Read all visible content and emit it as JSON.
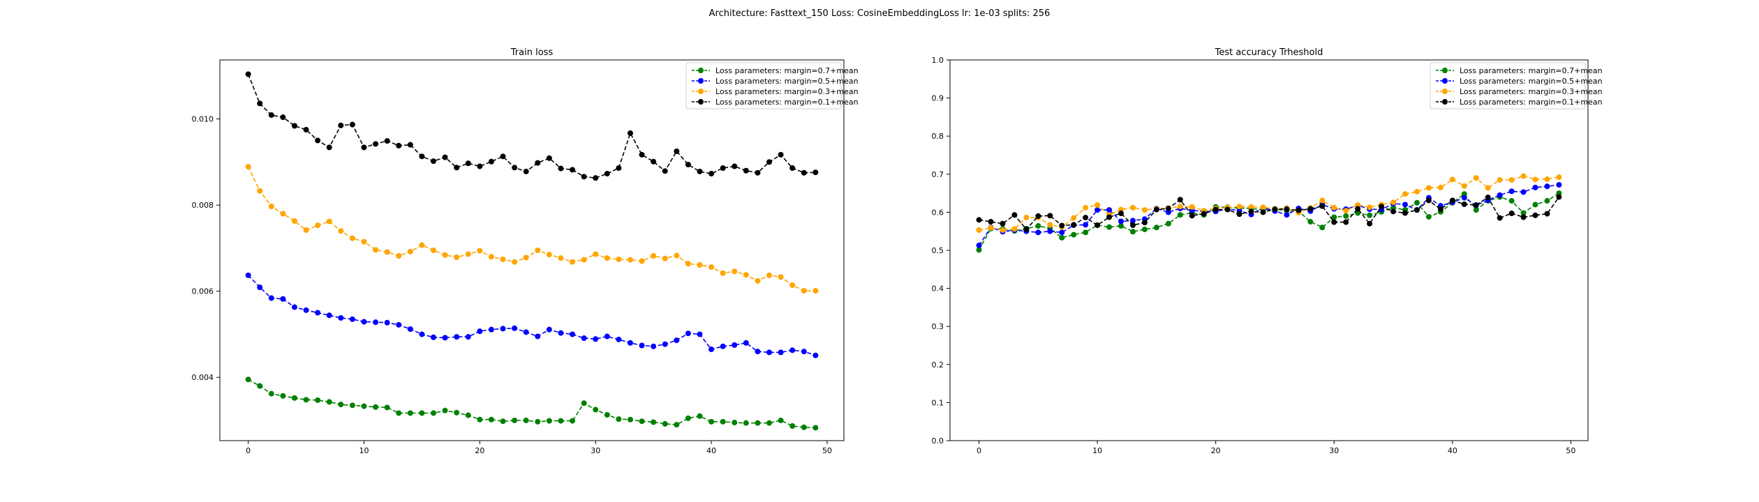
{
  "figure": {
    "suptitle": "Architecture: Fasttext_150 Loss: CosineEmbeddingLoss lr: 1e-03 splits: 256"
  },
  "chart_data": [
    {
      "type": "line",
      "title": "Train loss",
      "xlabel": "",
      "ylabel": "",
      "xlim": [
        -2.45,
        51.45
      ],
      "ylim": [
        0.00253,
        0.01137
      ],
      "xticks": [
        0,
        10,
        20,
        30,
        40,
        50
      ],
      "yticks": [
        0.004,
        0.006,
        0.008,
        0.01
      ],
      "ytick_labels": [
        "0.004",
        "0.006",
        "0.008",
        "0.010"
      ],
      "grid": false,
      "legend_loc": "upper right",
      "x": [
        0,
        1,
        2,
        3,
        4,
        5,
        6,
        7,
        8,
        9,
        10,
        11,
        12,
        13,
        14,
        15,
        16,
        17,
        18,
        19,
        20,
        21,
        22,
        23,
        24,
        25,
        26,
        27,
        28,
        29,
        30,
        31,
        32,
        33,
        34,
        35,
        36,
        37,
        38,
        39,
        40,
        41,
        42,
        43,
        44,
        45,
        46,
        47,
        48,
        49
      ],
      "series": [
        {
          "name": "Loss parameters: margin=0.7+mean",
          "color": "#008000",
          "values": [
            0.00395,
            0.0038,
            0.00362,
            0.00357,
            0.00352,
            0.00348,
            0.00347,
            0.00343,
            0.00337,
            0.00335,
            0.00333,
            0.00331,
            0.0033,
            0.00317,
            0.00317,
            0.00317,
            0.00317,
            0.00323,
            0.00318,
            0.00312,
            0.00302,
            0.00302,
            0.00298,
            0.003,
            0.003,
            0.00297,
            0.00299,
            0.00299,
            0.00299,
            0.0034,
            0.00325,
            0.00313,
            0.00303,
            0.00302,
            0.00298,
            0.00296,
            0.00292,
            0.0029,
            0.00305,
            0.0031,
            0.00297,
            0.00297,
            0.00295,
            0.00294,
            0.00294,
            0.00294,
            0.003,
            0.00287,
            0.00284,
            0.00283
          ]
        },
        {
          "name": "Loss parameters: margin=0.5+mean",
          "color": "#0000ff",
          "values": [
            0.00637,
            0.00609,
            0.00584,
            0.00582,
            0.00563,
            0.00556,
            0.0055,
            0.00544,
            0.00538,
            0.00535,
            0.00529,
            0.00528,
            0.00527,
            0.00522,
            0.00512,
            0.005,
            0.00493,
            0.00492,
            0.00494,
            0.00494,
            0.00507,
            0.00511,
            0.00513,
            0.00514,
            0.00505,
            0.00495,
            0.00511,
            0.00503,
            0.005,
            0.00491,
            0.00489,
            0.00495,
            0.00488,
            0.0048,
            0.00474,
            0.00472,
            0.00477,
            0.00486,
            0.00502,
            0.005,
            0.00465,
            0.00472,
            0.00475,
            0.0048,
            0.0046,
            0.00458,
            0.00458,
            0.00463,
            0.0046,
            0.00451
          ]
        },
        {
          "name": "Loss parameters: margin=0.3+mean",
          "color": "#ffa500",
          "values": [
            0.00889,
            0.00833,
            0.00797,
            0.0078,
            0.00763,
            0.00742,
            0.00753,
            0.00762,
            0.0074,
            0.00723,
            0.00715,
            0.00696,
            0.00691,
            0.00682,
            0.00692,
            0.00707,
            0.00695,
            0.00684,
            0.00679,
            0.00686,
            0.00694,
            0.0068,
            0.00674,
            0.00668,
            0.00678,
            0.00695,
            0.00685,
            0.00677,
            0.00668,
            0.00673,
            0.00686,
            0.00677,
            0.00674,
            0.00673,
            0.0067,
            0.00682,
            0.00676,
            0.00683,
            0.00664,
            0.00661,
            0.00656,
            0.00642,
            0.00646,
            0.00638,
            0.00624,
            0.00637,
            0.00633,
            0.00614,
            0.00601,
            0.00601
          ]
        },
        {
          "name": "Loss parameters: margin=0.1+mean",
          "color": "#000000",
          "values": [
            0.01104,
            0.01036,
            0.01009,
            0.01004,
            0.00984,
            0.00975,
            0.0095,
            0.00934,
            0.00985,
            0.00987,
            0.00934,
            0.00942,
            0.00949,
            0.00938,
            0.0094,
            0.00913,
            0.00902,
            0.00911,
            0.00887,
            0.00897,
            0.0089,
            0.00901,
            0.00913,
            0.00887,
            0.00878,
            0.00898,
            0.00909,
            0.00885,
            0.00882,
            0.00866,
            0.00863,
            0.00873,
            0.00886,
            0.00967,
            0.00917,
            0.00901,
            0.00879,
            0.00925,
            0.00894,
            0.00878,
            0.00873,
            0.00886,
            0.0089,
            0.0088,
            0.00875,
            0.009,
            0.00917,
            0.00886,
            0.00875,
            0.00876
          ]
        }
      ]
    },
    {
      "type": "line",
      "title": "Test accuracy Trheshold",
      "xlabel": "",
      "ylabel": "",
      "xlim": [
        -2.45,
        51.45
      ],
      "ylim": [
        0.0,
        1.0
      ],
      "xticks": [
        0,
        10,
        20,
        30,
        40,
        50
      ],
      "yticks": [
        0.0,
        0.1,
        0.2,
        0.3,
        0.4,
        0.5,
        0.6,
        0.7,
        0.8,
        0.9,
        1.0
      ],
      "ytick_labels": [
        "0.0",
        "0.1",
        "0.2",
        "0.3",
        "0.4",
        "0.5",
        "0.6",
        "0.7",
        "0.8",
        "0.9",
        "1.0"
      ],
      "grid": false,
      "legend_loc": "upper right",
      "x": [
        0,
        1,
        2,
        3,
        4,
        5,
        6,
        7,
        8,
        9,
        10,
        11,
        12,
        13,
        14,
        15,
        16,
        17,
        18,
        19,
        20,
        21,
        22,
        23,
        24,
        25,
        26,
        27,
        28,
        29,
        30,
        31,
        32,
        33,
        34,
        35,
        36,
        37,
        38,
        39,
        40,
        41,
        42,
        43,
        44,
        45,
        46,
        47,
        48,
        49
      ],
      "series": [
        {
          "name": "Loss parameters: margin=0.7+mean",
          "color": "#008000",
          "values": [
            0.501,
            0.557,
            0.556,
            0.551,
            0.557,
            0.564,
            0.558,
            0.533,
            0.541,
            0.547,
            0.566,
            0.561,
            0.564,
            0.549,
            0.555,
            0.56,
            0.57,
            0.593,
            0.598,
            0.593,
            0.614,
            0.613,
            0.611,
            0.61,
            0.606,
            0.608,
            0.604,
            0.603,
            0.575,
            0.56,
            0.587,
            0.59,
            0.598,
            0.592,
            0.601,
            0.612,
            0.606,
            0.625,
            0.588,
            0.601,
            0.625,
            0.648,
            0.606,
            0.63,
            0.64,
            0.63,
            0.598,
            0.62,
            0.63,
            0.65
          ]
        },
        {
          "name": "Loss parameters: margin=0.5+mean",
          "color": "#0000ff",
          "values": [
            0.513,
            0.56,
            0.549,
            0.553,
            0.55,
            0.547,
            0.55,
            0.547,
            0.566,
            0.567,
            0.606,
            0.606,
            0.576,
            0.578,
            0.582,
            0.61,
            0.6,
            0.61,
            0.605,
            0.602,
            0.602,
            0.609,
            0.604,
            0.594,
            0.612,
            0.603,
            0.593,
            0.61,
            0.603,
            0.62,
            0.609,
            0.608,
            0.618,
            0.608,
            0.607,
            0.623,
            0.62,
            0.606,
            0.638,
            0.617,
            0.626,
            0.638,
            0.618,
            0.632,
            0.645,
            0.655,
            0.653,
            0.665,
            0.668,
            0.672
          ]
        },
        {
          "name": "Loss parameters: margin=0.3+mean",
          "color": "#ffa500",
          "values": [
            0.553,
            0.559,
            0.553,
            0.556,
            0.586,
            0.586,
            0.567,
            0.561,
            0.585,
            0.612,
            0.619,
            0.593,
            0.607,
            0.612,
            0.606,
            0.609,
            0.611,
            0.615,
            0.614,
            0.604,
            0.61,
            0.612,
            0.615,
            0.614,
            0.613,
            0.609,
            0.611,
            0.599,
            0.611,
            0.631,
            0.612,
            0.604,
            0.619,
            0.613,
            0.62,
            0.626,
            0.648,
            0.654,
            0.664,
            0.665,
            0.686,
            0.669,
            0.69,
            0.664,
            0.685,
            0.685,
            0.695,
            0.686,
            0.687,
            0.692
          ]
        },
        {
          "name": "Loss parameters: margin=0.1+mean",
          "color": "#000000",
          "values": [
            0.58,
            0.575,
            0.57,
            0.593,
            0.555,
            0.59,
            0.591,
            0.565,
            0.567,
            0.586,
            0.566,
            0.587,
            0.597,
            0.566,
            0.573,
            0.607,
            0.61,
            0.633,
            0.591,
            0.596,
            0.607,
            0.607,
            0.595,
            0.602,
            0.6,
            0.608,
            0.608,
            0.605,
            0.609,
            0.616,
            0.574,
            0.574,
            0.609,
            0.57,
            0.615,
            0.602,
            0.598,
            0.606,
            0.631,
            0.608,
            0.631,
            0.621,
            0.619,
            0.639,
            0.585,
            0.597,
            0.587,
            0.592,
            0.596,
            0.64
          ]
        }
      ]
    }
  ]
}
